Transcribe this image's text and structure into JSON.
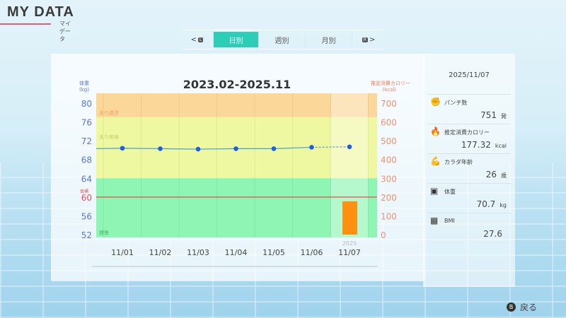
{
  "header": {
    "title": "MY DATA",
    "subtitle": "マイデータ"
  },
  "tabs": {
    "prev_key": "L",
    "next_key": "R",
    "items": [
      {
        "label": "日別",
        "active": true
      },
      {
        "label": "週別",
        "active": false
      },
      {
        "label": "月別",
        "active": false
      }
    ]
  },
  "chart_data": {
    "type": "line+bar",
    "title": "2023.02-2025.11",
    "ylabel_left": "体重\n(kg)",
    "ylabel_left_1": "体重",
    "ylabel_left_2": "(kg)",
    "ylabel_right_1": "推定消費カロリー",
    "ylabel_right_2": "(kcal)",
    "categories": [
      "11/01",
      "11/02",
      "11/03",
      "11/04",
      "11/05",
      "11/06",
      "11/07"
    ],
    "year_label": "2025",
    "left_ticks": [
      80,
      76,
      72,
      68,
      64,
      60,
      56,
      52
    ],
    "right_ticks": [
      700,
      600,
      500,
      400,
      300,
      200,
      100,
      0
    ],
    "ylim_left": [
      51.4,
      82.1
    ],
    "ylim_right": [
      0,
      700
    ],
    "weight": {
      "values": [
        70.4,
        70.3,
        70.2,
        70.3,
        70.3,
        70.6,
        70.7
      ],
      "color": "#1a5fe8"
    },
    "calories": {
      "values": [
        0,
        0,
        0,
        0,
        0,
        0,
        177.32
      ],
      "color": "#ff9010"
    },
    "target": {
      "label": "目標",
      "value": 60,
      "color": "#e05050"
    },
    "bands": [
      {
        "label": "太り過ぎ",
        "from": 77,
        "to": 82.1,
        "color": "#fbd89a"
      },
      {
        "label": "太り気味",
        "from": 64,
        "to": 77,
        "color": "#eef8a0"
      },
      {
        "label": "標準",
        "from": 51.4,
        "to": 64,
        "color": "#8ef5b4"
      }
    ]
  },
  "side": {
    "date": "2025/11/07",
    "stats": [
      {
        "icon": "glove-icon",
        "glyph": "✊",
        "label": "パンチ数",
        "value": "751",
        "unit": "発"
      },
      {
        "icon": "flame-icon",
        "glyph": "🔥",
        "label": "推定消費カロリー",
        "value": "177.32",
        "unit": "kcal"
      },
      {
        "icon": "body-icon",
        "glyph": "💪",
        "label": "カラダ年齢",
        "value": "26",
        "unit": "歳"
      },
      {
        "icon": "scale-icon",
        "glyph": "▣",
        "label": "体重",
        "value": "70.7",
        "unit": "kg"
      },
      {
        "icon": "calculator-icon",
        "glyph": "▦",
        "label": "BMI",
        "value": "27.6",
        "unit": ""
      }
    ]
  },
  "footer": {
    "back_key": "B",
    "back_label": "戻る"
  }
}
